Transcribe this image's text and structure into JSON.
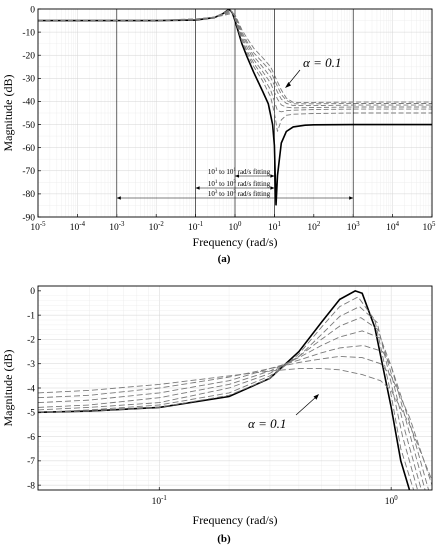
{
  "chart_data": [
    {
      "type": "line",
      "panel_label": "(a)",
      "xlabel": "Frequency (rad/s)",
      "ylabel": "Magnitude (dB)",
      "xscale": "log",
      "xlim": [
        1e-05,
        100000.0
      ],
      "ylim": [
        -90,
        0
      ],
      "x_tick_labels": [
        {
          "base": "10",
          "exp": "-5"
        },
        {
          "base": "10",
          "exp": "-4"
        },
        {
          "base": "10",
          "exp": "-3"
        },
        {
          "base": "10",
          "exp": "-2"
        },
        {
          "base": "10",
          "exp": "-1"
        },
        {
          "base": "10",
          "exp": "0"
        },
        {
          "base": "10",
          "exp": "1"
        },
        {
          "base": "10",
          "exp": "2"
        },
        {
          "base": "10",
          "exp": "3"
        },
        {
          "base": "10",
          "exp": "4"
        },
        {
          "base": "10",
          "exp": "5"
        }
      ],
      "y_tick_labels": [
        "0",
        "-10",
        "-20",
        "-30",
        "-40",
        "-50",
        "-60",
        "-70",
        "-80",
        "-90"
      ],
      "vertical_lines": [
        0.001,
        0.1,
        1,
        10,
        1000
      ],
      "fitting_ranges": [
        {
          "from": 1,
          "to": 10,
          "text": "10",
          "base_label": "10",
          "lo_exp": "1",
          "hi_exp": "1",
          "suffix": " rad/s fitting"
        },
        {
          "from": 0.1,
          "to": 10,
          "text": "10",
          "base_label": "10",
          "lo_exp": "1",
          "hi_exp": "3",
          "suffix": " rad/s fitting"
        },
        {
          "from": 0.001,
          "to": 1000,
          "text": "10",
          "base_label": "10",
          "lo_exp": "3",
          "hi_exp": "3",
          "suffix": " rad/s fitting"
        }
      ],
      "annotation": {
        "text": "α = 0.1",
        "x": 1.1,
        "y": -30
      },
      "series": [
        {
          "style": "solid",
          "x": [
            1e-05,
            0.01,
            0.1,
            0.3,
            0.5,
            0.7,
            0.85,
            1,
            1.5,
            2,
            3,
            5,
            7,
            9,
            10,
            10.5,
            11,
            12,
            15,
            20,
            30,
            60,
            100,
            1000,
            100000.0
          ],
          "values": [
            -5,
            -5,
            -4.8,
            -3.7,
            -2.0,
            -0.1,
            -1.5,
            -5,
            -15,
            -20.5,
            -27.5,
            -35.5,
            -41,
            -50,
            -59,
            -72,
            -85,
            -72,
            -58,
            -53,
            -51,
            -50.3,
            -50.1,
            -50,
            -50
          ]
        },
        {
          "style": "dashed",
          "x": [
            1e-05,
            0.01,
            0.1,
            0.3,
            0.5,
            0.7,
            0.85,
            1,
            1.5,
            2,
            3,
            5,
            8,
            10,
            12,
            15,
            20,
            30,
            100,
            1000,
            100000.0
          ],
          "values": [
            -5,
            -5,
            -4.8,
            -3.7,
            -2.0,
            -0.2,
            -1.4,
            -4.5,
            -14,
            -19,
            -25,
            -31,
            -38,
            -45,
            -53,
            -48,
            -46,
            -45.5,
            -45.2,
            -45,
            -45
          ]
        },
        {
          "style": "dashed",
          "x": [
            1e-05,
            0.01,
            0.1,
            0.3,
            0.5,
            0.7,
            0.85,
            1,
            1.5,
            2,
            3,
            5,
            8,
            10,
            12,
            15,
            20,
            30,
            100,
            1000,
            100000.0
          ],
          "values": [
            -5,
            -5,
            -4.7,
            -3.6,
            -2.0,
            -0.4,
            -1.3,
            -4,
            -13,
            -18,
            -23.5,
            -29,
            -35,
            -40,
            -44,
            -44.5,
            -44,
            -43.8,
            -43.5,
            -43.3,
            -43.3
          ]
        },
        {
          "style": "dashed",
          "x": [
            1e-05,
            0.01,
            0.1,
            0.3,
            0.5,
            0.7,
            0.85,
            1,
            1.5,
            2,
            3,
            5,
            8,
            10,
            12,
            15,
            20,
            30,
            100,
            1000,
            100000.0
          ],
          "values": [
            -5,
            -5,
            -4.6,
            -3.5,
            -2.1,
            -0.8,
            -1.2,
            -3.5,
            -12,
            -16.5,
            -22,
            -27,
            -32,
            -36,
            -39,
            -41.5,
            -42.5,
            -42.8,
            -42.6,
            -42.4,
            -42.4
          ]
        },
        {
          "style": "dashed",
          "x": [
            1e-05,
            0.01,
            0.1,
            0.3,
            0.5,
            0.7,
            0.85,
            1,
            1.5,
            2,
            3,
            5,
            8,
            10,
            12,
            15,
            20,
            30,
            100,
            1000,
            100000.0
          ],
          "values": [
            -5,
            -4.9,
            -4.5,
            -3.5,
            -2.3,
            -1.2,
            -1.3,
            -3,
            -11,
            -15,
            -20.5,
            -25,
            -29.5,
            -33,
            -36,
            -39,
            -40.8,
            -41.8,
            -41.8,
            -41.6,
            -41.6
          ]
        },
        {
          "style": "dashed",
          "x": [
            1e-05,
            0.01,
            0.1,
            0.3,
            0.5,
            0.7,
            0.85,
            1,
            1.5,
            2,
            3,
            5,
            8,
            10,
            12,
            15,
            20,
            30,
            100,
            1000,
            100000.0
          ],
          "values": [
            -5,
            -4.9,
            -4.4,
            -3.5,
            -2.5,
            -1.7,
            -1.5,
            -2.6,
            -10,
            -14,
            -19,
            -23,
            -27,
            -30.5,
            -33.5,
            -37,
            -39.5,
            -41,
            -41,
            -40.9,
            -40.9
          ]
        },
        {
          "style": "dashed",
          "x": [
            1e-05,
            0.01,
            0.1,
            0.3,
            0.5,
            0.7,
            0.85,
            1,
            1.5,
            2,
            3,
            5,
            8,
            10,
            12,
            15,
            20,
            30,
            100,
            1000,
            100000.0
          ],
          "values": [
            -5,
            -4.8,
            -4.3,
            -3.6,
            -2.8,
            -2.2,
            -2.0,
            -2.4,
            -9,
            -12.5,
            -17,
            -21,
            -25,
            -28.5,
            -31.5,
            -35,
            -38.5,
            -40.4,
            -40.4,
            -40.3,
            -40.3
          ]
        }
      ]
    },
    {
      "type": "line",
      "panel_label": "(b)",
      "xlabel": "Frequency (rad/s)",
      "ylabel": "Magnitude (dB)",
      "xscale": "log",
      "xlim": [
        0.03,
        1.5
      ],
      "ylim": [
        -8.2,
        0.2
      ],
      "x_tick_labels": [
        {
          "value": 0.1,
          "base": "10",
          "exp": "-1"
        },
        {
          "value": 1,
          "base": "10",
          "exp": "0"
        }
      ],
      "y_tick_labels": [
        "0",
        "-1",
        "-2",
        "-3",
        "-4",
        "-5",
        "-6",
        "-7",
        "-8"
      ],
      "annotation": {
        "text": "α = 0.1",
        "x": 0.2,
        "y": -5.4
      },
      "series": [
        {
          "style": "solid",
          "x": [
            0.03,
            0.05,
            0.1,
            0.2,
            0.3,
            0.4,
            0.5,
            0.6,
            0.7,
            0.75,
            0.85,
            1,
            1.1,
            1.2
          ],
          "values": [
            -5,
            -4.95,
            -4.8,
            -4.35,
            -3.6,
            -2.5,
            -1.3,
            -0.35,
            0,
            -0.1,
            -1.5,
            -4.8,
            -7,
            -8.2
          ]
        },
        {
          "style": "dashed",
          "x": [
            0.03,
            0.05,
            0.1,
            0.2,
            0.3,
            0.4,
            0.5,
            0.6,
            0.72,
            0.85,
            1,
            1.1,
            1.25
          ],
          "values": [
            -5,
            -4.95,
            -4.8,
            -4.3,
            -3.6,
            -2.6,
            -1.5,
            -0.65,
            -0.25,
            -1.2,
            -4.3,
            -6.5,
            -8.2
          ]
        },
        {
          "style": "dashed",
          "x": [
            0.03,
            0.05,
            0.1,
            0.2,
            0.3,
            0.4,
            0.5,
            0.6,
            0.73,
            0.87,
            1,
            1.12,
            1.3
          ],
          "values": [
            -5,
            -4.9,
            -4.7,
            -4.2,
            -3.5,
            -2.7,
            -1.8,
            -1.05,
            -0.65,
            -1.3,
            -3.8,
            -6.0,
            -8.2
          ]
        },
        {
          "style": "dashed",
          "x": [
            0.03,
            0.05,
            0.1,
            0.2,
            0.3,
            0.4,
            0.5,
            0.6,
            0.74,
            0.88,
            1,
            1.15,
            1.35
          ],
          "values": [
            -4.9,
            -4.8,
            -4.6,
            -4.0,
            -3.4,
            -2.7,
            -2.0,
            -1.45,
            -1.1,
            -1.6,
            -3.4,
            -5.8,
            -8.2
          ]
        },
        {
          "style": "dashed",
          "x": [
            0.03,
            0.05,
            0.1,
            0.2,
            0.3,
            0.4,
            0.5,
            0.6,
            0.75,
            0.9,
            1,
            1.18,
            1.4
          ],
          "values": [
            -4.8,
            -4.7,
            -4.4,
            -3.85,
            -3.3,
            -2.75,
            -2.25,
            -1.9,
            -1.65,
            -1.95,
            -3.1,
            -5.6,
            -8.2
          ]
        },
        {
          "style": "dashed",
          "x": [
            0.03,
            0.05,
            0.1,
            0.2,
            0.3,
            0.4,
            0.5,
            0.6,
            0.76,
            0.92,
            1,
            1.2,
            1.45
          ],
          "values": [
            -4.6,
            -4.5,
            -4.2,
            -3.7,
            -3.2,
            -2.85,
            -2.55,
            -2.35,
            -2.25,
            -2.5,
            -3.1,
            -5.4,
            -8.2
          ]
        },
        {
          "style": "dashed",
          "x": [
            0.03,
            0.05,
            0.1,
            0.2,
            0.3,
            0.4,
            0.5,
            0.6,
            0.75,
            0.9,
            1,
            1.2,
            1.5
          ],
          "values": [
            -4.4,
            -4.3,
            -4.0,
            -3.55,
            -3.2,
            -2.95,
            -2.8,
            -2.7,
            -2.75,
            -3.0,
            -3.5,
            -5.2,
            -8.0
          ]
        },
        {
          "style": "dashed",
          "x": [
            0.03,
            0.05,
            0.1,
            0.2,
            0.3,
            0.4,
            0.5,
            0.6,
            0.75,
            0.9,
            1,
            1.2,
            1.5
          ],
          "values": [
            -4.2,
            -4.1,
            -3.85,
            -3.5,
            -3.3,
            -3.2,
            -3.2,
            -3.25,
            -3.45,
            -3.7,
            -4.1,
            -5.5,
            -7.8
          ]
        }
      ]
    }
  ]
}
